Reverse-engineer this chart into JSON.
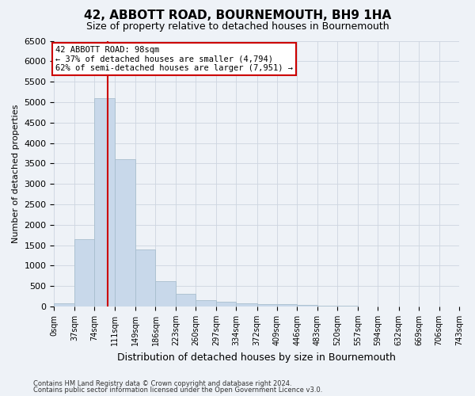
{
  "title": "42, ABBOTT ROAD, BOURNEMOUTH, BH9 1HA",
  "subtitle": "Size of property relative to detached houses in Bournemouth",
  "xlabel": "Distribution of detached houses by size in Bournemouth",
  "ylabel": "Number of detached properties",
  "bin_edges": [
    0,
    37,
    74,
    111,
    149,
    186,
    223,
    260,
    297,
    334,
    372,
    409,
    446,
    483,
    520,
    557,
    594,
    632,
    669,
    706,
    743
  ],
  "bar_heights": [
    75,
    1650,
    5100,
    3600,
    1400,
    620,
    300,
    145,
    110,
    75,
    55,
    50,
    30,
    15,
    10,
    5,
    5,
    3,
    2,
    2
  ],
  "bar_color": "#c8d8ea",
  "bar_edge_color": "#a8bece",
  "property_size": 98,
  "red_line_color": "#cc0000",
  "annotation_line1": "42 ABBOTT ROAD: 98sqm",
  "annotation_line2": "← 37% of detached houses are smaller (4,794)",
  "annotation_line3": "62% of semi-detached houses are larger (7,951) →",
  "annotation_box_edgecolor": "#cc0000",
  "ylim": [
    0,
    6500
  ],
  "yticks": [
    0,
    500,
    1000,
    1500,
    2000,
    2500,
    3000,
    3500,
    4000,
    4500,
    5000,
    5500,
    6000,
    6500
  ],
  "grid_color": "#cdd5e0",
  "bg_color": "#eef2f7",
  "title_fontsize": 11,
  "subtitle_fontsize": 9,
  "ylabel_fontsize": 8,
  "xlabel_fontsize": 9,
  "tick_fontsize": 8,
  "xtick_fontsize": 7,
  "footer_line1": "Contains HM Land Registry data © Crown copyright and database right 2024.",
  "footer_line2": "Contains public sector information licensed under the Open Government Licence v3.0."
}
